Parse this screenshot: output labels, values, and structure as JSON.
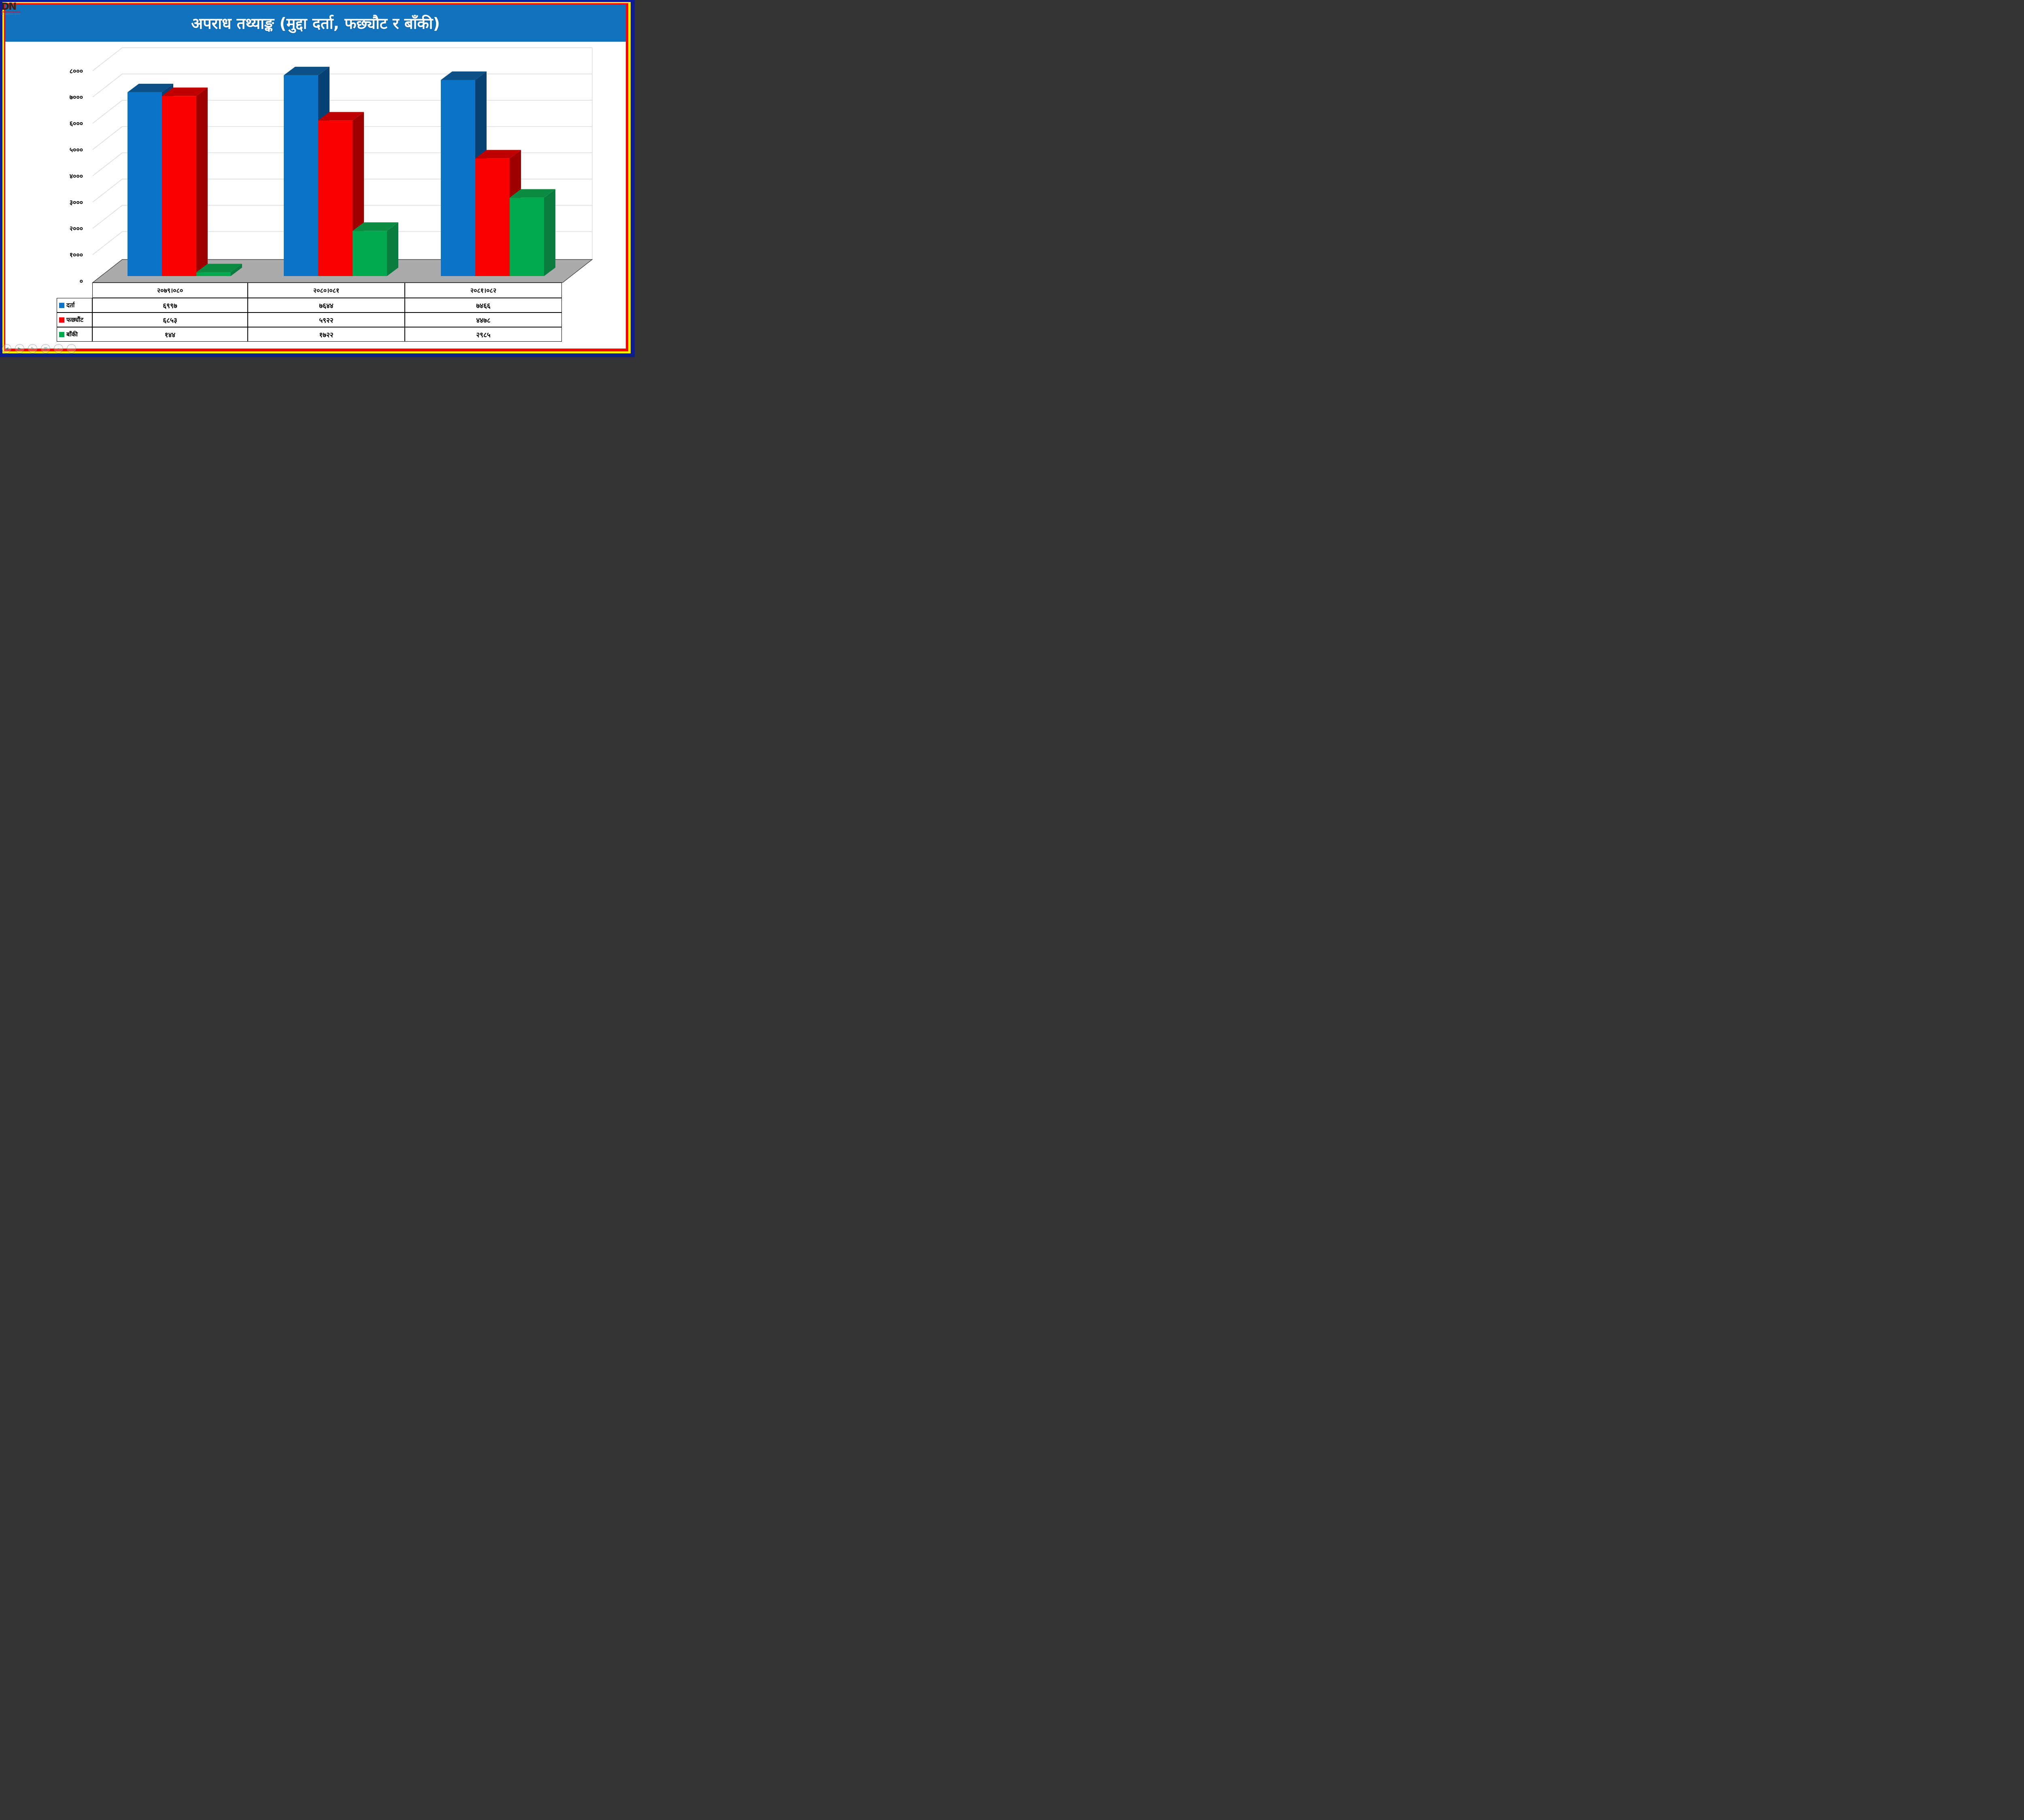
{
  "logo": {
    "monogram": "DN",
    "line1": "DAIMIKNEPALGUNJ",
    "line2": "EMPOWERING YOUTH"
  },
  "title": "अपराध तथ्याङ्क (मुद्दा दर्ता, फछ्यौट र बाँकी)",
  "chart_data": {
    "type": "bar",
    "style": "3d-clustered-column",
    "title": "अपराध तथ्याङ्क (मुद्दा दर्ता, फछ्यौट र बाँकी)",
    "categories": [
      "२०७९।०८०",
      "२०८०।०८१",
      "२०८१।०८२"
    ],
    "categories_translit": [
      "2079/080",
      "2080/081",
      "2081/082"
    ],
    "series": [
      {
        "key": "darta",
        "name": "दर्ता",
        "values": [
          6997,
          7644,
          7466
        ],
        "values_text": [
          "६९९७",
          "७६४४",
          "७४६६"
        ],
        "front": "#0B74C9",
        "top": "#0B5187",
        "side": "#084275"
      },
      {
        "key": "fachyaut",
        "name": "फछ्यौंट",
        "values": [
          6853,
          5922,
          4478
        ],
        "values_text": [
          "६८५३",
          "५९२२",
          "४४७८"
        ],
        "front": "#FB0000",
        "top": "#BE0000",
        "side": "#9E0000"
      },
      {
        "key": "banki",
        "name": "बाँकी",
        "values": [
          144,
          1722,
          2985
        ],
        "values_text": [
          "१४४",
          "१७२२",
          "२९८५"
        ],
        "front": "#00A84E",
        "top": "#0C8C43",
        "side": "#0A7C3E"
      }
    ],
    "y_axis": {
      "min": 0,
      "max": 8000,
      "step": 1000,
      "tick_labels": [
        "०",
        "१०००",
        "२०००",
        "३०००",
        "४०००",
        "५०००",
        "६०००",
        "७०००",
        "८०००"
      ]
    },
    "legend_position": "table-left",
    "grid": true,
    "floor_color": "#ABABAB",
    "gridline_color": "#D6D6D6"
  },
  "presenter_controls": [
    {
      "name": "previous-slide",
      "glyph": "◀"
    },
    {
      "name": "next-slide",
      "glyph": "▶"
    },
    {
      "name": "pen",
      "glyph": "✎"
    },
    {
      "name": "show-all-slides",
      "glyph": "⊞"
    },
    {
      "name": "zoom-slide",
      "glyph": "⌕"
    },
    {
      "name": "more-options",
      "glyph": "⋯"
    }
  ],
  "colors": {
    "border_navy": "#0D1C8E",
    "border_yellow": "#FFF000",
    "border_red": "#F90505",
    "title_bar_bg": "#1173BE",
    "title_text": "#FFFFFF",
    "table_border": "#000000"
  }
}
